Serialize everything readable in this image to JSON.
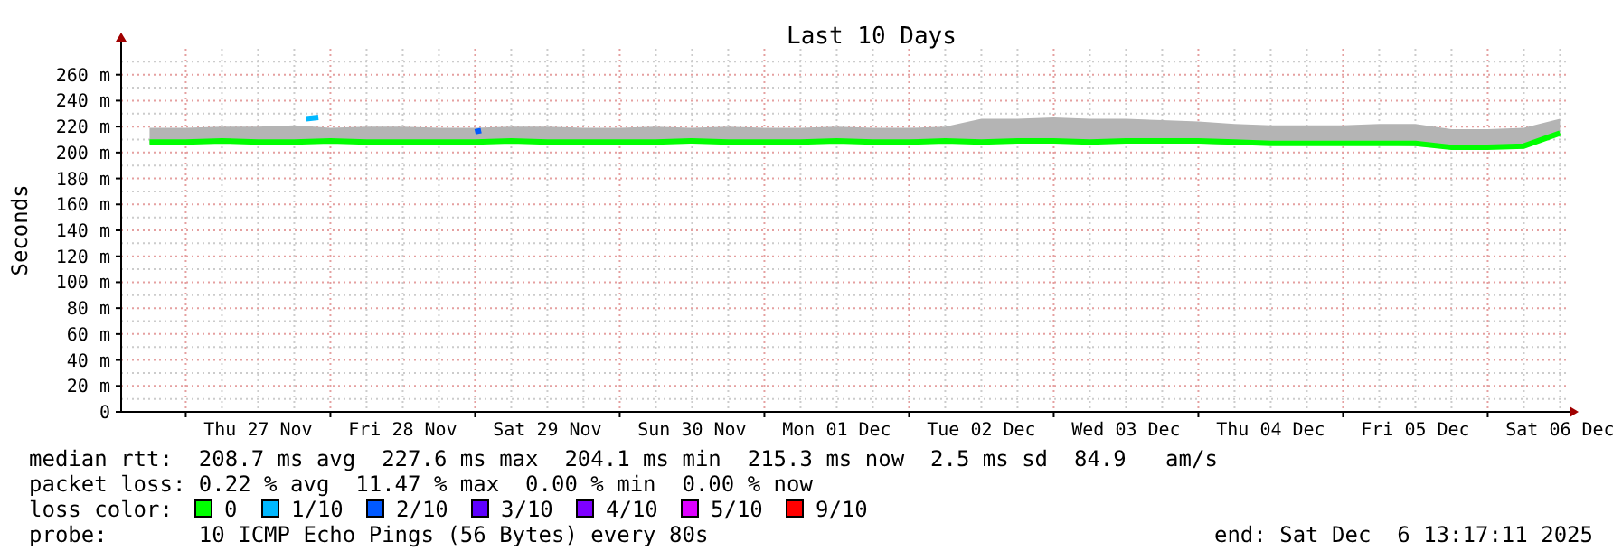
{
  "chart_data": {
    "type": "line",
    "title": "Last 10 Days",
    "ylabel": "Seconds",
    "legend_title": "loss color:",
    "legend": "bottom",
    "grid": true,
    "line_style": "solid",
    "marker": "none",
    "xlim": [
      "2025-11-26T13:17",
      "2025-12-06T13:17"
    ],
    "xticks": [
      {
        "value": "2025-11-27T00:00",
        "label": null
      },
      {
        "value": "2025-11-27T12:00",
        "label": "Thu 27 Nov"
      },
      {
        "value": "2025-11-28T00:00",
        "label": null
      },
      {
        "value": "2025-11-28T12:00",
        "label": "Fri 28 Nov"
      },
      {
        "value": "2025-11-29T00:00",
        "label": null
      },
      {
        "value": "2025-11-29T12:00",
        "label": "Sat 29 Nov"
      },
      {
        "value": "2025-11-30T00:00",
        "label": null
      },
      {
        "value": "2025-11-30T12:00",
        "label": "Sun 30 Nov"
      },
      {
        "value": "2025-12-01T00:00",
        "label": null
      },
      {
        "value": "2025-12-01T12:00",
        "label": "Mon 01 Dec"
      },
      {
        "value": "2025-12-02T00:00",
        "label": null
      },
      {
        "value": "2025-12-02T12:00",
        "label": "Tue 02 Dec"
      },
      {
        "value": "2025-12-03T00:00",
        "label": null
      },
      {
        "value": "2025-12-03T12:00",
        "label": "Wed 03 Dec"
      },
      {
        "value": "2025-12-04T00:00",
        "label": null
      },
      {
        "value": "2025-12-04T12:00",
        "label": "Thu 04 Dec"
      },
      {
        "value": "2025-12-05T00:00",
        "label": null
      },
      {
        "value": "2025-12-05T12:00",
        "label": "Fri 05 Dec"
      },
      {
        "value": "2025-12-06T00:00",
        "label": null
      },
      {
        "value": "2025-12-06T12:00",
        "label": "Sat 06 Dec"
      }
    ],
    "ylim": [
      0,
      280
    ],
    "yticks": [
      {
        "value": 0,
        "label": "0"
      },
      {
        "value": 20,
        "label": "20 m"
      },
      {
        "value": 40,
        "label": "40 m"
      },
      {
        "value": 60,
        "label": "60 m"
      },
      {
        "value": 80,
        "label": "80 m"
      },
      {
        "value": 100,
        "label": "100 m"
      },
      {
        "value": 120,
        "label": "120 m"
      },
      {
        "value": 140,
        "label": "140 m"
      },
      {
        "value": 160,
        "label": "160 m"
      },
      {
        "value": 180,
        "label": "180 m"
      },
      {
        "value": 200,
        "label": "200 m"
      },
      {
        "value": 220,
        "label": "220 m"
      },
      {
        "value": 240,
        "label": "240 m"
      },
      {
        "value": 260,
        "label": "260 m"
      }
    ],
    "x": [
      "2025-11-26T18:00",
      "2025-11-27T00:00",
      "2025-11-27T06:00",
      "2025-11-27T12:00",
      "2025-11-27T18:00",
      "2025-11-28T00:00",
      "2025-11-28T06:00",
      "2025-11-28T12:00",
      "2025-11-28T18:00",
      "2025-11-29T00:00",
      "2025-11-29T06:00",
      "2025-11-29T12:00",
      "2025-11-29T18:00",
      "2025-11-30T00:00",
      "2025-11-30T06:00",
      "2025-11-30T12:00",
      "2025-11-30T18:00",
      "2025-12-01T00:00",
      "2025-12-01T06:00",
      "2025-12-01T12:00",
      "2025-12-01T18:00",
      "2025-12-02T00:00",
      "2025-12-02T06:00",
      "2025-12-02T12:00",
      "2025-12-02T18:00",
      "2025-12-03T00:00",
      "2025-12-03T06:00",
      "2025-12-03T12:00",
      "2025-12-03T18:00",
      "2025-12-04T00:00",
      "2025-12-04T06:00",
      "2025-12-04T12:00",
      "2025-12-04T18:00",
      "2025-12-05T00:00",
      "2025-12-05T06:00",
      "2025-12-05T12:00",
      "2025-12-05T18:00",
      "2025-12-06T00:00",
      "2025-12-06T06:00",
      "2025-12-06T12:00"
    ],
    "series": [
      {
        "name": "0",
        "color": "#00ff00",
        "values": [
          208,
          208,
          209,
          208,
          208,
          209,
          208,
          208,
          208,
          208,
          209,
          208,
          208,
          208,
          208,
          209,
          208,
          208,
          208,
          209,
          208,
          208,
          209,
          208,
          209,
          209,
          208,
          209,
          209,
          209,
          208,
          207,
          207,
          207,
          207,
          207,
          204,
          204,
          205,
          215
        ],
        "lower": [
          207,
          207,
          207,
          207,
          207,
          207,
          207,
          207,
          207,
          207,
          207,
          207,
          207,
          207,
          207,
          207,
          207,
          207,
          207,
          207,
          207,
          207,
          207,
          207,
          207,
          207,
          207,
          207,
          207,
          207,
          206,
          206,
          206,
          206,
          206,
          205,
          203,
          203,
          203,
          214
        ],
        "upper": [
          219,
          219,
          220,
          220,
          221,
          219,
          220,
          220,
          219,
          219,
          220,
          220,
          219,
          219,
          220,
          219,
          220,
          219,
          219,
          220,
          219,
          219,
          220,
          226,
          226,
          227,
          226,
          226,
          225,
          224,
          222,
          221,
          221,
          221,
          222,
          222,
          218,
          218,
          219,
          226
        ]
      },
      {
        "name": "1/10",
        "color": "#00b8ff",
        "x": [
          "2025-11-27T20:00",
          "2025-11-27T22:00"
        ],
        "values": [
          226,
          227
        ]
      },
      {
        "name": "2/10",
        "color": "#0059ff",
        "x": [
          "2025-11-29T00:00",
          "2025-11-29T01:00"
        ],
        "values": [
          216,
          217
        ]
      },
      {
        "name": "3/10",
        "color": "#5e00ff",
        "values": [
          null,
          null,
          null,
          null,
          null,
          null,
          null,
          null,
          null,
          null,
          null,
          null,
          null,
          null,
          null,
          null,
          null,
          null,
          null,
          null,
          null,
          null,
          null,
          null,
          null,
          null,
          null,
          null,
          null,
          null,
          null,
          null,
          null,
          null,
          null,
          null,
          null,
          null,
          null,
          null
        ]
      },
      {
        "name": "4/10",
        "color": "#7e00ff",
        "values": [
          null,
          null,
          null,
          null,
          null,
          null,
          null,
          null,
          null,
          null,
          null,
          null,
          null,
          null,
          null,
          null,
          null,
          null,
          null,
          null,
          null,
          null,
          null,
          null,
          null,
          null,
          null,
          null,
          null,
          null,
          null,
          null,
          null,
          null,
          null,
          null,
          null,
          null,
          null,
          null
        ]
      },
      {
        "name": "5/10",
        "color": "#dd00ff",
        "values": [
          null,
          null,
          null,
          null,
          null,
          null,
          null,
          null,
          null,
          null,
          null,
          null,
          null,
          null,
          null,
          null,
          null,
          null,
          null,
          null,
          null,
          null,
          null,
          null,
          null,
          null,
          null,
          null,
          null,
          null,
          null,
          null,
          null,
          null,
          null,
          null,
          null,
          null,
          null,
          null
        ]
      },
      {
        "name": "9/10",
        "color": "#ff0000",
        "values": [
          null,
          null,
          null,
          null,
          null,
          null,
          null,
          null,
          null,
          null,
          null,
          null,
          null,
          null,
          null,
          null,
          null,
          null,
          null,
          null,
          null,
          null,
          null,
          null,
          null,
          null,
          null,
          null,
          null,
          null,
          null,
          null,
          null,
          null,
          null,
          null,
          null,
          null,
          null,
          null
        ]
      }
    ],
    "annotations": [
      "median rtt:  208.7 ms avg  227.6 ms max  204.1 ms min  215.3 ms now  2.5 ms sd  84.9   am/s",
      "packet loss: 0.22 % avg  11.47 % max  0.00 % min  0.00 % now",
      "probe:       10 ICMP Echo Pings (56 Bytes) every 80s",
      "end: Sat Dec  6 13:17:11 2025"
    ]
  }
}
